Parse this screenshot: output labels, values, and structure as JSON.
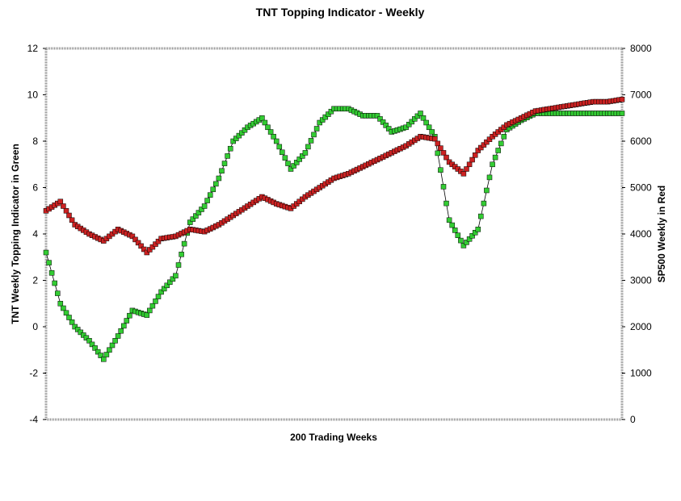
{
  "chart_data": {
    "type": "line",
    "title": "TNT Topping Indicator - Weekly",
    "xlabel": "200 Trading Weeks",
    "ylabel": "TNT Weekly Topping Indicator in Green",
    "y2label": "SP500 Weekly in Red",
    "ylim": [
      -4,
      12
    ],
    "y2lim": [
      0,
      8000
    ],
    "xlim": [
      0,
      200
    ],
    "yticks": [
      "12",
      "10",
      "8",
      "6",
      "4",
      "2",
      "0",
      "-2",
      "-4"
    ],
    "y2ticks": [
      "8000",
      "7000",
      "6000",
      "5000",
      "4000",
      "3000",
      "2000",
      "1000",
      "0"
    ],
    "grid": false,
    "legend": "none",
    "series": [
      {
        "axis": "left",
        "color": "#33cc33",
        "x": [
          0,
          5,
          10,
          15,
          20,
          25,
          30,
          35,
          40,
          45,
          50,
          55,
          60,
          65,
          70,
          75,
          80,
          85,
          90,
          95,
          100,
          105,
          110,
          115,
          120,
          125,
          130,
          135,
          140,
          145,
          150,
          155,
          160,
          165,
          170,
          175,
          180,
          185,
          190,
          195,
          200
        ],
        "values": [
          3.2,
          1.0,
          0.0,
          -0.6,
          -1.4,
          -0.4,
          0.7,
          0.5,
          1.5,
          2.2,
          4.5,
          5.2,
          6.4,
          8.0,
          8.6,
          9.0,
          8.0,
          6.8,
          7.5,
          8.8,
          9.4,
          9.4,
          9.1,
          9.1,
          8.4,
          8.6,
          9.2,
          8.2,
          4.6,
          3.5,
          4.2,
          7.0,
          8.5,
          8.9,
          9.2,
          9.2,
          9.2,
          9.2,
          9.2,
          9.2,
          9.2
        ]
      },
      {
        "axis": "right",
        "color": "#cc2222",
        "x": [
          0,
          5,
          10,
          15,
          20,
          25,
          30,
          35,
          40,
          45,
          50,
          55,
          60,
          65,
          70,
          75,
          80,
          85,
          90,
          95,
          100,
          105,
          110,
          115,
          120,
          125,
          130,
          135,
          140,
          145,
          150,
          155,
          160,
          165,
          170,
          175,
          180,
          185,
          190,
          195,
          200
        ],
        "values": [
          4500,
          4700,
          4200,
          4000,
          3850,
          4100,
          3950,
          3600,
          3900,
          3950,
          4100,
          4050,
          4200,
          4400,
          4600,
          4800,
          4650,
          4550,
          4800,
          5000,
          5200,
          5300,
          5450,
          5600,
          5750,
          5900,
          6100,
          6050,
          5550,
          5300,
          5800,
          6100,
          6350,
          6500,
          6650,
          6700,
          6750,
          6800,
          6850,
          6850,
          6900
        ]
      }
    ]
  }
}
